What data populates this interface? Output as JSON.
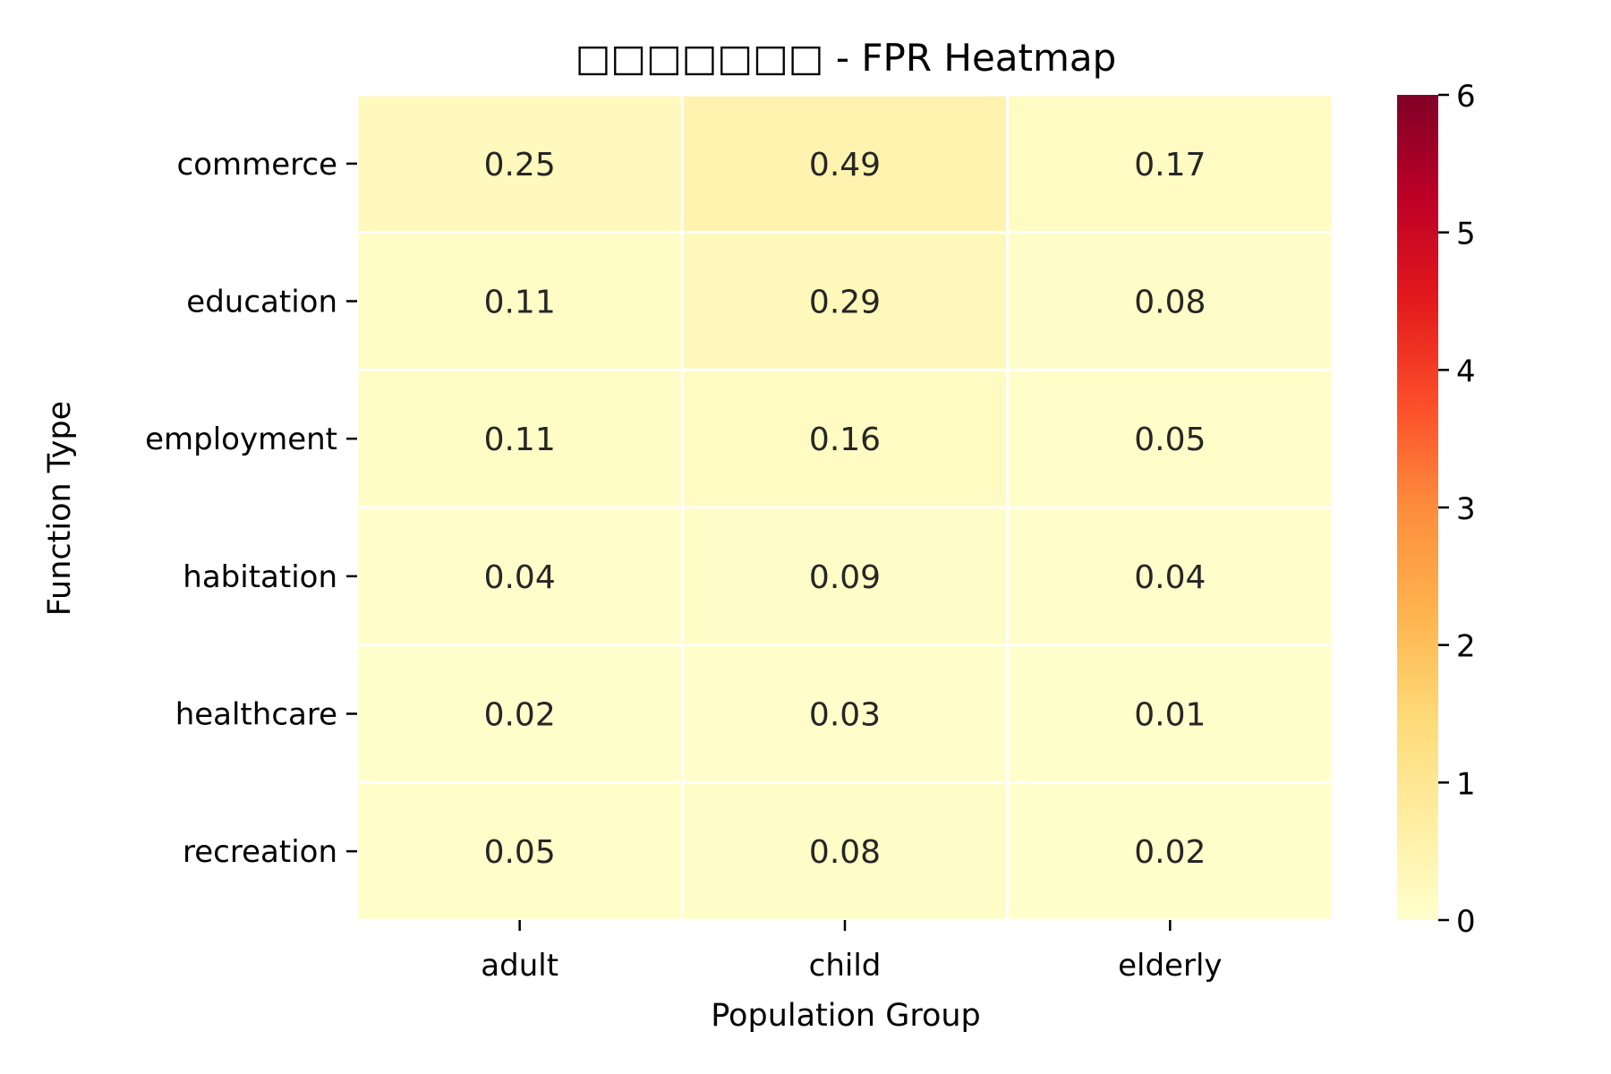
{
  "chart_data": {
    "type": "heatmap",
    "title": "□□□□□□□ - FPR Heatmap",
    "xlabel": "Population Group",
    "ylabel": "Function Type",
    "x_categories": [
      "adult",
      "child",
      "elderly"
    ],
    "y_categories": [
      "commerce",
      "education",
      "employment",
      "habitation",
      "healthcare",
      "recreation"
    ],
    "values": [
      [
        0.25,
        0.49,
        0.17
      ],
      [
        0.11,
        0.29,
        0.08
      ],
      [
        0.11,
        0.16,
        0.05
      ],
      [
        0.04,
        0.09,
        0.04
      ],
      [
        0.02,
        0.03,
        0.01
      ],
      [
        0.05,
        0.08,
        0.02
      ]
    ],
    "value_labels": [
      [
        "0.25",
        "0.49",
        "0.17"
      ],
      [
        "0.11",
        "0.29",
        "0.08"
      ],
      [
        "0.11",
        "0.16",
        "0.05"
      ],
      [
        "0.04",
        "0.09",
        "0.04"
      ],
      [
        "0.02",
        "0.03",
        "0.01"
      ],
      [
        "0.05",
        "0.08",
        "0.02"
      ]
    ],
    "colorscale": "YlOrRd",
    "colorbar": {
      "range": [
        0,
        6
      ],
      "ticks": [
        0,
        1,
        2,
        3,
        4,
        5,
        6
      ],
      "tick_labels": [
        "0",
        "1",
        "2",
        "3",
        "4",
        "5",
        "6"
      ]
    },
    "cell_border_color": "#ffffff"
  }
}
